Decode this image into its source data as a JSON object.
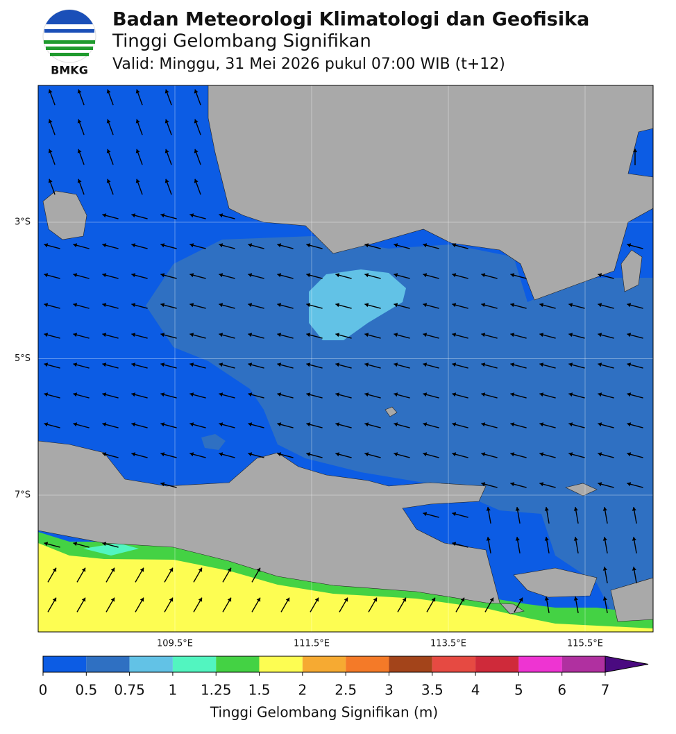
{
  "header": {
    "logo_text": "BMKG",
    "title": "Badan Meteorologi Klimatologi dan Geofisika",
    "subtitle": "Tinggi Gelombang Signifikan",
    "valid": "Valid: Minggu, 31 Mei 2026 pukul 07:00 WIB (t+12)"
  },
  "map": {
    "lat_labels": [
      "3°S",
      "5°S",
      "7°S"
    ],
    "lon_labels": [
      "109.5°E",
      "111.5°E",
      "113.5°E",
      "115.5°E"
    ]
  },
  "colorbar": {
    "ticks": [
      0,
      0.5,
      0.75,
      1,
      1.25,
      1.5,
      2,
      2.5,
      3,
      3.5,
      4,
      5,
      6,
      7
    ],
    "colors": [
      "#0c5ce4",
      "#2f70c2",
      "#62c2e6",
      "#52f5c0",
      "#44d244",
      "#fdfd52",
      "#f6aa32",
      "#f47a28",
      "#a3441a",
      "#e64a42",
      "#cf2a3a",
      "#ee34d2",
      "#b030a0"
    ],
    "extend_color": "#4a0a80",
    "label": "Tinggi Gelombang Signifikan (m)"
  }
}
